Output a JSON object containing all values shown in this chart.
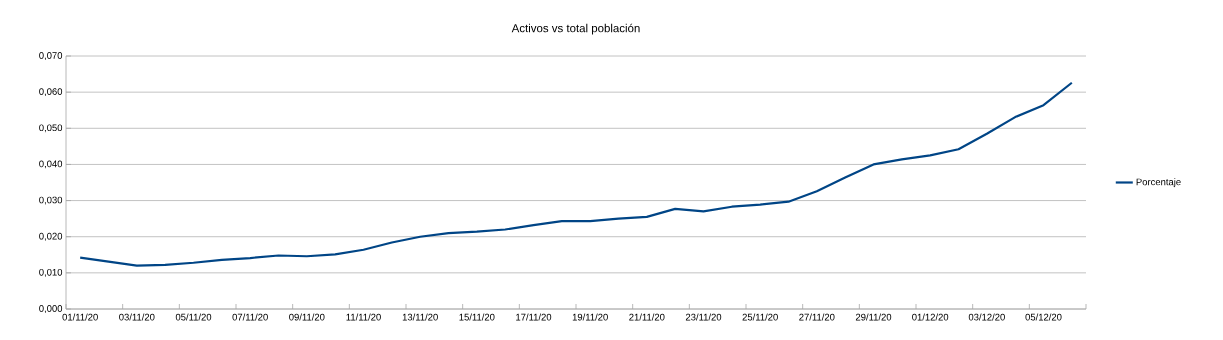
{
  "chart_data": {
    "type": "line",
    "title": "Activos vs total población",
    "categories": [
      "01/11/20",
      null,
      "03/11/20",
      null,
      "05/11/20",
      null,
      "07/11/20",
      null,
      "09/11/20",
      null,
      "11/11/20",
      null,
      "13/11/20",
      null,
      "15/11/20",
      null,
      "17/11/20",
      null,
      "19/11/20",
      null,
      "21/11/20",
      null,
      "23/11/20",
      null,
      "25/11/20",
      null,
      "27/11/20",
      null,
      "29/11/20",
      null,
      "01/12/20",
      null,
      "03/12/20",
      null,
      "05/12/20",
      null
    ],
    "series": [
      {
        "name": "Porcentaje",
        "color": "#004586",
        "values": [
          0.0142,
          0.0131,
          0.012,
          0.0122,
          0.0128,
          0.0136,
          0.0141,
          0.0148,
          0.0146,
          0.0151,
          0.0164,
          0.0184,
          0.02,
          0.021,
          0.0214,
          0.022,
          0.0232,
          0.0243,
          0.0243,
          0.025,
          0.0255,
          0.0277,
          0.027,
          0.0283,
          0.0289,
          0.0297,
          0.0326,
          0.0364,
          0.04,
          0.0414,
          0.0425,
          0.0442,
          0.0485,
          0.0531,
          0.0564,
          0.0626
        ]
      }
    ],
    "ylim": [
      0,
      0.07
    ],
    "yticks": [
      {
        "value": 0,
        "label": "0,000"
      },
      {
        "value": 0.01,
        "label": "0,010"
      },
      {
        "value": 0.02,
        "label": "0,020"
      },
      {
        "value": 0.03,
        "label": "0,030"
      },
      {
        "value": 0.04,
        "label": "0,040"
      },
      {
        "value": 0.05,
        "label": "0,050"
      },
      {
        "value": 0.06,
        "label": "0,060"
      },
      {
        "value": 0.07,
        "label": "0,070"
      }
    ],
    "grid": "y",
    "legend": "right",
    "marker": "none",
    "line_style": "solid"
  }
}
